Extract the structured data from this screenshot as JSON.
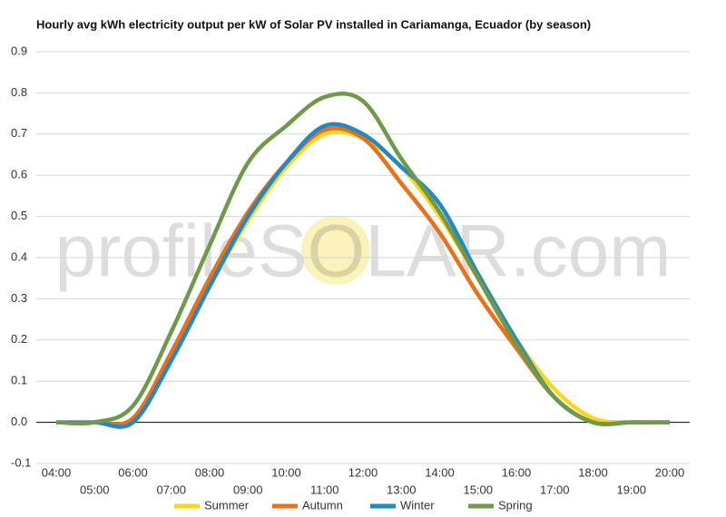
{
  "chart_data": {
    "type": "line",
    "title": "Hourly avg kWh electricity output per kW of Solar PV installed in Cariamanga, Ecuador (by season)",
    "watermark": "profileSOLAR.com",
    "categories": [
      "04:00",
      "05:00",
      "06:00",
      "07:00",
      "08:00",
      "09:00",
      "10:00",
      "11:00",
      "12:00",
      "13:00",
      "14:00",
      "15:00",
      "16:00",
      "17:00",
      "18:00",
      "19:00",
      "20:00"
    ],
    "series": [
      {
        "name": "Summer",
        "color": "#f9d71c",
        "values": [
          0,
          0,
          0.01,
          0.16,
          0.33,
          0.49,
          0.62,
          0.7,
          0.69,
          0.62,
          0.5,
          0.35,
          0.2,
          0.08,
          0.01,
          0,
          0
        ]
      },
      {
        "name": "Autumn",
        "color": "#e8711a",
        "values": [
          0,
          0,
          0.01,
          0.17,
          0.35,
          0.51,
          0.63,
          0.71,
          0.69,
          0.58,
          0.46,
          0.31,
          0.18,
          0.06,
          0,
          0,
          0
        ]
      },
      {
        "name": "Winter",
        "color": "#2389c4",
        "values": [
          0,
          0,
          0,
          0.15,
          0.33,
          0.5,
          0.63,
          0.72,
          0.7,
          0.62,
          0.53,
          0.36,
          0.2,
          0.06,
          0,
          0,
          0
        ]
      },
      {
        "name": "Spring",
        "color": "#6e9a49",
        "values": [
          0,
          0,
          0.04,
          0.22,
          0.43,
          0.63,
          0.72,
          0.79,
          0.78,
          0.64,
          0.51,
          0.35,
          0.19,
          0.06,
          0,
          0,
          0
        ]
      }
    ],
    "ylim": [
      -0.1,
      0.9
    ],
    "yticks": [
      -0.1,
      {
        "value": 0,
        "label": "0.0"
      },
      0.1,
      0.2,
      0.3,
      0.4,
      0.5,
      0.6,
      0.7,
      0.8,
      0.9
    ],
    "grid": true,
    "legend": "bottom"
  }
}
